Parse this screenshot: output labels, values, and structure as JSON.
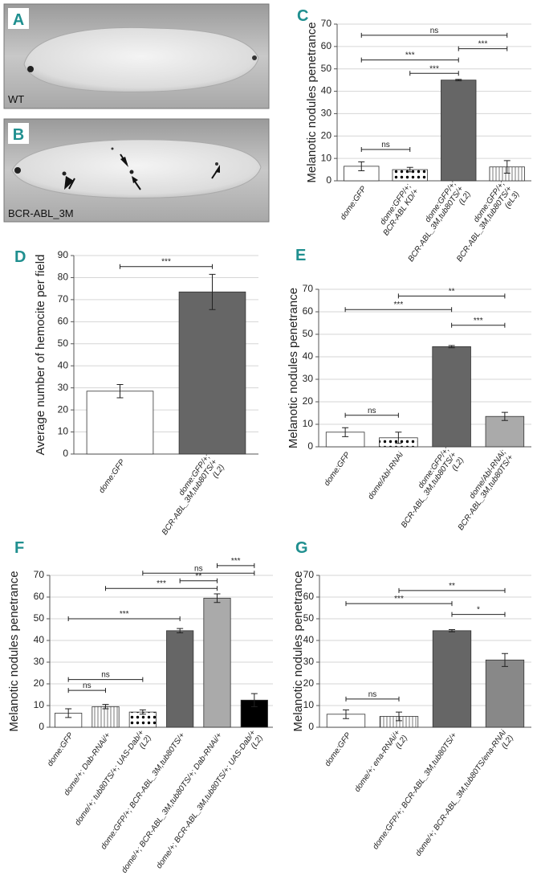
{
  "photos": [
    {
      "panel": "A",
      "label": "WT"
    },
    {
      "panel": "B",
      "label": "BCR-ABL_3M"
    }
  ],
  "chart_data": [
    {
      "type": "bar",
      "panel": "C",
      "ylabel": "Melanotic nodules penetrance",
      "categories": [
        [
          "dome:GFP"
        ],
        [
          "dome:GFP/+;",
          "BCR-ABL KD/+"
        ],
        [
          "dome:GFP/+;",
          "BCR-ABL_3M,tub80TS/+",
          "(L2)"
        ],
        [
          "dome:GFP/+;",
          "BCR-ABL_3M,tub80TS/+",
          "(eL3)"
        ]
      ],
      "values": [
        6.5,
        5,
        45,
        6.2
      ],
      "errors": [
        2,
        1,
        0.3,
        2.8
      ],
      "bar_fills": [
        "#ffffff",
        "dotted",
        "#666666",
        "striped"
      ],
      "ylim": [
        0,
        70
      ],
      "yticks": [
        0,
        10,
        20,
        30,
        40,
        50,
        60,
        70
      ],
      "grid": true,
      "comparisons": [
        {
          "bars": [
            0,
            1
          ],
          "level": 14,
          "label": "ns"
        },
        {
          "bars": [
            1,
            2
          ],
          "level": 48,
          "label": "***"
        },
        {
          "bars": [
            0,
            2
          ],
          "level": 54,
          "label": "***"
        },
        {
          "bars": [
            2,
            3
          ],
          "level": 59,
          "label": "***"
        },
        {
          "bars": [
            0,
            3
          ],
          "level": 65,
          "label": "ns"
        }
      ]
    },
    {
      "type": "bar",
      "panel": "D",
      "ylabel": "Average number of hemocite per field",
      "categories": [
        [
          "dome:GFP"
        ],
        [
          "dome:GFP/+;",
          "BCR-ABL_3M,tub80TS/+",
          "(L2)"
        ]
      ],
      "values": [
        28.5,
        73.5
      ],
      "errors": [
        3,
        8
      ],
      "bar_fills": [
        "#ffffff",
        "#666666"
      ],
      "ylim": [
        0,
        90
      ],
      "yticks": [
        0,
        10,
        20,
        30,
        40,
        50,
        60,
        70,
        80,
        90
      ],
      "grid": true,
      "comparisons": [
        {
          "bars": [
            0,
            1
          ],
          "level": 85,
          "label": "***"
        }
      ]
    },
    {
      "type": "bar",
      "panel": "E",
      "ylabel": "Melanotic nodules penetrance",
      "categories": [
        [
          "dome:GFP"
        ],
        [
          "dome/Abl-RNAi"
        ],
        [
          "dome:GFP/+;",
          "BCR-ABL_3M,tub80TS/+",
          "(L2)"
        ],
        [
          "dome/Abl-RNAi;",
          "BCR-ABL_3M,tub80TS/+"
        ]
      ],
      "values": [
        6.5,
        4,
        44.5,
        13.5
      ],
      "errors": [
        2,
        2.5,
        0.5,
        1.8
      ],
      "bar_fills": [
        "#ffffff",
        "dotted",
        "#666666",
        "#aaaaaa"
      ],
      "ylim": [
        0,
        70
      ],
      "yticks": [
        0,
        10,
        20,
        30,
        40,
        50,
        60,
        70
      ],
      "grid": true,
      "comparisons": [
        {
          "bars": [
            0,
            1
          ],
          "level": 14,
          "label": "ns"
        },
        {
          "bars": [
            2,
            3
          ],
          "level": 54,
          "label": "***"
        },
        {
          "bars": [
            0,
            2
          ],
          "level": 61,
          "label": "***"
        },
        {
          "bars": [
            1,
            3
          ],
          "level": 67,
          "label": "**"
        }
      ]
    },
    {
      "type": "bar",
      "panel": "F",
      "ylabel": "Melanotic nodules penetrance",
      "categories": [
        [
          "dome:GFP"
        ],
        [
          "dome/+; Dab-RNAi/+"
        ],
        [
          "dome/+; tub80TS/+; UAS-Dab/+",
          "(L2)"
        ],
        [
          "dome:GFP/+; BCR-ABL_3M,tub80TS/+"
        ],
        [
          "dome/+; BCR-ABL_3M,tub80TS/+; Dab-RNAi/+"
        ],
        [
          "dome/+; BCR-ABL_3M,tub80TS/+; UAS-Dab/+",
          "(L2)"
        ]
      ],
      "values": [
        6.5,
        9.5,
        7,
        44.5,
        59.5,
        12.5
      ],
      "errors": [
        2,
        1,
        1,
        1,
        2,
        3
      ],
      "bar_fills": [
        "#ffffff",
        "striped",
        "dotted",
        "#666666",
        "#aaaaaa",
        "#000000"
      ],
      "ylim": [
        0,
        70
      ],
      "yticks": [
        0,
        10,
        20,
        30,
        40,
        50,
        60,
        70
      ],
      "grid": true,
      "comparisons": [
        {
          "bars": [
            0,
            1
          ],
          "level": 17,
          "label": "ns"
        },
        {
          "bars": [
            0,
            2
          ],
          "level": 22,
          "label": "ns"
        },
        {
          "bars": [
            0,
            3
          ],
          "level": 50,
          "label": "***"
        },
        {
          "bars": [
            1,
            4
          ],
          "level": 64,
          "label": "***"
        },
        {
          "bars": [
            3,
            4
          ],
          "level": 67.5,
          "label": "**"
        },
        {
          "bars": [
            2,
            5
          ],
          "level": 71,
          "label": "ns"
        },
        {
          "bars": [
            4,
            5
          ],
          "level": 74.5,
          "label": "***"
        }
      ]
    },
    {
      "type": "bar",
      "panel": "G",
      "ylabel": "Melanotic nodules penetrance",
      "categories": [
        [
          "dome:GFP"
        ],
        [
          "dome/+; ena-RNAi/+",
          "(L2)"
        ],
        [
          "dome:GFP/+; BCR-ABL_3M,tub80TS/+"
        ],
        [
          "dome/+; BCR-ABL_3M,tub80TS/ena-RNAi",
          "(L2)"
        ]
      ],
      "values": [
        6,
        5,
        44.5,
        31
      ],
      "errors": [
        2,
        2,
        0.5,
        3
      ],
      "bar_fills": [
        "#ffffff",
        "striped",
        "#666666",
        "#888888"
      ],
      "ylim": [
        0,
        70
      ],
      "yticks": [
        0,
        10,
        20,
        30,
        40,
        50,
        60,
        70
      ],
      "grid": true,
      "comparisons": [
        {
          "bars": [
            0,
            1
          ],
          "level": 13,
          "label": "ns"
        },
        {
          "bars": [
            2,
            3
          ],
          "level": 52,
          "label": "*"
        },
        {
          "bars": [
            0,
            2
          ],
          "level": 57,
          "label": "***"
        },
        {
          "bars": [
            1,
            3
          ],
          "level": 63,
          "label": "**"
        }
      ]
    }
  ]
}
